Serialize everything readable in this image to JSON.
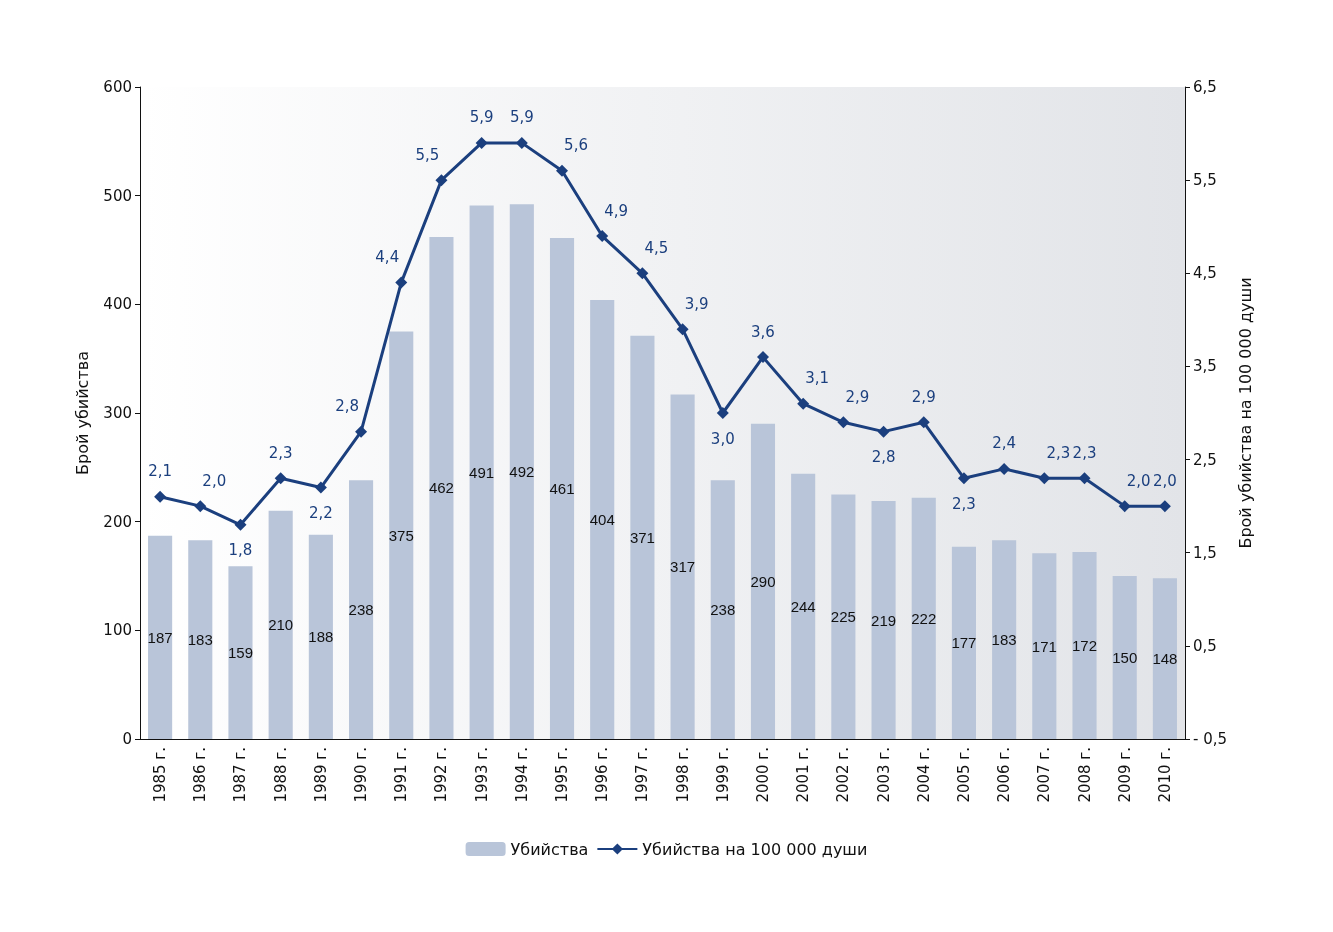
{
  "chart_data": {
    "type": "bar",
    "categories": [
      "1985 г.",
      "1986 г.",
      "1987 г.",
      "1988 г.",
      "1989 г.",
      "1990 г.",
      "1991 г.",
      "1992 г.",
      "1993 г.",
      "1994 г.",
      "1995 г.",
      "1996 г.",
      "1997 г.",
      "1998 г.",
      "1999 г.",
      "2000 г.",
      "2001 г.",
      "2002 г.",
      "2003 г.",
      "2004 г.",
      "2005 г.",
      "2006 г.",
      "2007 г.",
      "2008 г.",
      "2009 г.",
      "2010 г."
    ],
    "ylabel": "Брой убийства",
    "y2label": "Брой убийства на 100 000 души",
    "ylim": [
      0,
      600
    ],
    "yticks": [
      0,
      100,
      200,
      300,
      400,
      500,
      600
    ],
    "y2lim": [
      -0.5,
      6.5
    ],
    "y2ticks": [
      {
        "value": -0.5,
        "label": "- 0,5"
      },
      {
        "value": 0.5,
        "label": "0,5"
      },
      {
        "value": 1.5,
        "label": "1,5"
      },
      {
        "value": 2.5,
        "label": "2,5"
      },
      {
        "value": 3.5,
        "label": "3,5"
      },
      {
        "value": 4.5,
        "label": "4,5"
      },
      {
        "value": 5.5,
        "label": "5,5"
      },
      {
        "value": 6.5,
        "label": "6,5"
      }
    ],
    "series": [
      {
        "name": "Убийства",
        "color": "#b9c5d9",
        "data_labels": true,
        "values": [
          187,
          183,
          159,
          210,
          188,
          238,
          375,
          462,
          491,
          492,
          461,
          404,
          371,
          317,
          238,
          290,
          244,
          225,
          219,
          222,
          177,
          183,
          171,
          172,
          150,
          148
        ]
      },
      {
        "name": "Убийства на 100 000 души",
        "type": "line",
        "axis": "y2",
        "color": "#1b3f7e",
        "marker": "diamond",
        "values": [
          2.1,
          2.0,
          1.8,
          2.3,
          2.2,
          2.8,
          4.4,
          5.5,
          5.9,
          5.9,
          5.6,
          4.9,
          4.5,
          3.9,
          3.0,
          3.6,
          3.1,
          2.9,
          2.8,
          2.9,
          2.3,
          2.4,
          2.3,
          2.3,
          2.0,
          2.0
        ],
        "value_labels": [
          "2,1",
          "2,0",
          "1,8",
          "2,3",
          "2,2",
          "2,8",
          "4,4",
          "5,5",
          "5,9",
          "5,9",
          "5,6",
          "4,9",
          "4,5",
          "3,9",
          "3,0",
          "3,6",
          "3,1",
          "2,9",
          "2,8",
          "2,9",
          "2,3",
          "2,4",
          "2,3",
          "2,3",
          "2,0",
          "2,0"
        ]
      }
    ],
    "grid": false,
    "legend": "bottom"
  }
}
